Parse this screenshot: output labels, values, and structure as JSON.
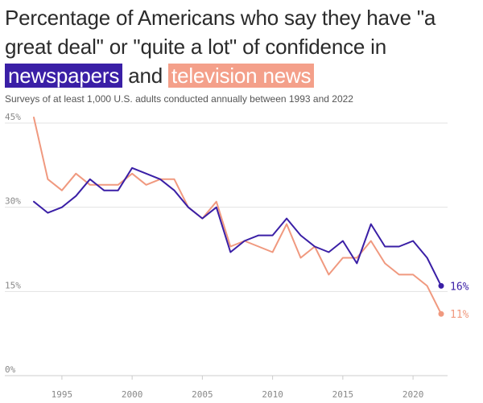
{
  "title": {
    "line1": "Percentage of Americans who say they have \"a great deal\" or \"quite a lot\" of confidence in",
    "highlight_newspapers": "newspapers",
    "connector": "and",
    "highlight_tv": "television news"
  },
  "subtitle": "Surveys of at least 1,000 U.S. adults conducted annually between 1993 and 2022",
  "colors": {
    "newspapers": "#3a1fa6",
    "television": "#f0997f",
    "grid": "#e3e3e3",
    "tick": "#888888"
  },
  "chart_data": {
    "type": "line",
    "x": [
      1993,
      1994,
      1995,
      1996,
      1997,
      1998,
      1999,
      2000,
      2001,
      2002,
      2003,
      2004,
      2005,
      2006,
      2007,
      2008,
      2009,
      2010,
      2011,
      2012,
      2013,
      2014,
      2015,
      2016,
      2017,
      2018,
      2019,
      2020,
      2021,
      2022
    ],
    "series": [
      {
        "name": "newspapers",
        "color": "#3a1fa6",
        "values": [
          31,
          29,
          30,
          32,
          35,
          33,
          33,
          37,
          36,
          35,
          33,
          30,
          28,
          30,
          22,
          24,
          25,
          25,
          28,
          25,
          23,
          22,
          24,
          20,
          27,
          23,
          23,
          24,
          21,
          16
        ],
        "end_label": "16%"
      },
      {
        "name": "television news",
        "color": "#f0997f",
        "values": [
          46,
          35,
          33,
          36,
          34,
          34,
          34,
          36,
          34,
          35,
          35,
          30,
          28,
          31,
          23,
          24,
          23,
          22,
          27,
          21,
          23,
          18,
          21,
          21,
          24,
          20,
          18,
          18,
          16,
          11
        ],
        "end_label": "11%"
      }
    ],
    "xlim": [
      1993,
      2022
    ],
    "ylim": [
      0,
      45
    ],
    "yticks": [
      0,
      15,
      30,
      45
    ],
    "ytick_labels": [
      "0%",
      "15%",
      "30%",
      "45%"
    ],
    "xticks": [
      1995,
      2000,
      2005,
      2010,
      2015,
      2020
    ],
    "xtick_labels": [
      "1995",
      "2000",
      "2005",
      "2010",
      "2015",
      "2020"
    ],
    "grid": true
  }
}
